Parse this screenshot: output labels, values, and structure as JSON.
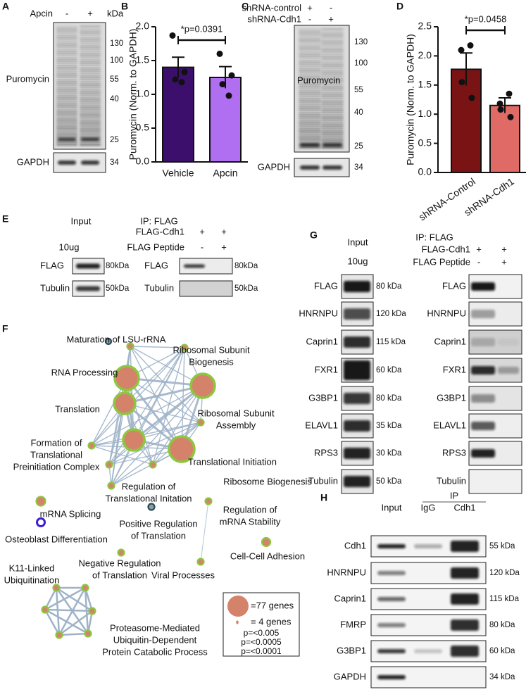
{
  "panels": [
    "A",
    "B",
    "C",
    "D",
    "E",
    "F",
    "G",
    "H"
  ],
  "panel_a": {
    "header": {
      "label": "Apcin",
      "lanes": [
        "-",
        "+"
      ],
      "unit": "kDa"
    },
    "markers": [
      "130",
      "100",
      "55",
      "40",
      "25"
    ],
    "blot_label": "Puromycin",
    "loading": {
      "label": "GAPDH",
      "marker": "34"
    }
  },
  "panel_c": {
    "conditions": [
      {
        "label": "shRNA-control",
        "lanes": [
          "+",
          "-"
        ]
      },
      {
        "label": "shRNA-Cdh1",
        "lanes": [
          "-",
          "+"
        ]
      }
    ],
    "markers": [
      "130",
      "100",
      "55",
      "40",
      "25"
    ],
    "blot_label": "Puromycin",
    "loading": {
      "label": "GAPDH",
      "marker": "34"
    }
  },
  "chart_data": [
    {
      "type": "bar",
      "ylabel": "Puromycin (Norm. to GAPDH)",
      "categories": [
        "Vehicle",
        "Apcin"
      ],
      "values": [
        1.4,
        1.25
      ],
      "errors": [
        0.15,
        0.16
      ],
      "colors": [
        "#3b0f6b",
        "#b06ef0"
      ],
      "points": [
        [
          1.87,
          1.33,
          1.22,
          1.18
        ],
        [
          1.6,
          1.28,
          1.15,
          0.98
        ]
      ],
      "ylim": [
        0,
        2.0
      ],
      "yticks": [
        {
          "value": 0,
          "label": "0.0"
        },
        0.5,
        {
          "value": 1,
          "label": "1.0"
        },
        1.5,
        {
          "value": 2,
          "label": "2.0"
        }
      ],
      "annotation": "*p=0.0391"
    },
    {
      "type": "bar",
      "ylabel": "Puromycin (Norm. to GAPDH)",
      "categories": [
        "shRNA-Control",
        "shRNA-Cdh1"
      ],
      "values": [
        1.77,
        1.15
      ],
      "errors": [
        0.28,
        0.13
      ],
      "colors": [
        "#7a1414",
        "#e06a66"
      ],
      "points": [
        [
          2.18,
          2.1,
          1.55,
          1.28
        ],
        [
          1.35,
          1.18,
          1.08,
          0.95
        ]
      ],
      "ylim": [
        0,
        2.5
      ],
      "yticks": [
        {
          "value": 0,
          "label": "0.0"
        },
        0.5,
        {
          "value": 1,
          "label": "1.0"
        },
        1.5,
        {
          "value": 2,
          "label": "2.0"
        },
        2.5
      ],
      "annotation": "*p=0.0458"
    }
  ],
  "panel_e": {
    "input": "Input",
    "amount": "10ug",
    "ip": "IP: FLAG",
    "conditions": [
      {
        "label": "FLAG-Cdh1",
        "lanes": [
          "+",
          "+"
        ]
      },
      {
        "label": "FLAG Peptide",
        "lanes": [
          "-",
          "+"
        ]
      }
    ],
    "rows": [
      {
        "label": "FLAG",
        "size": "80kDa"
      },
      {
        "label": "Tubulin",
        "size": "50kDa"
      }
    ]
  },
  "panel_f": {
    "terms": [
      [
        "Maturation of LSU-rRNA"
      ],
      [
        "Ribosomal Subunit",
        "Biogenesis"
      ],
      [
        "RNA Processing"
      ],
      [
        "Translation"
      ],
      [
        "Ribosomal Subunit",
        "Assembly"
      ],
      [
        "Formation of",
        "Translational",
        "Preinitiation Complex"
      ],
      [
        "Translational Initiation"
      ],
      [
        "Ribosome Biogenesis"
      ],
      [
        "Regulation of",
        "Translational Initation"
      ],
      [
        "mRNA Splicing"
      ],
      [
        "Regulation of",
        "mRNA Stability"
      ],
      [
        "Positive Regulation",
        "of Translation"
      ],
      [
        "Osteoblast Differentiation"
      ],
      [
        "Cell-Cell Adhesion"
      ],
      [
        "Negative Regulation",
        "of Translation"
      ],
      [
        "Viral Processes"
      ],
      [
        "K11-Linked",
        "Ubiquitination"
      ],
      [
        "Proteasome-Mediated",
        "Ubiquitin-Dependent",
        "Protein Catabolic Process"
      ]
    ],
    "legend": {
      "large": "=77 genes",
      "small": "= 4 genes",
      "pvalues": [
        "p=<0.005",
        "p=<0.0005",
        "p=<0.0001"
      ],
      "pvalue_colors": [
        "#5a2ca0",
        "#2c4a52",
        "#7ab034"
      ]
    }
  },
  "panel_g": {
    "input": "Input",
    "amount": "10ug",
    "ip": "IP: FLAG",
    "conditions": [
      {
        "label": "FLAG-Cdh1",
        "lanes": [
          "+",
          "+"
        ]
      },
      {
        "label": "FLAG Peptide",
        "lanes": [
          "-",
          "+"
        ]
      }
    ],
    "rows": [
      {
        "label": "FLAG",
        "size": "80 kDa"
      },
      {
        "label": "HNRNPU",
        "size": "120 kDa"
      },
      {
        "label": "Caprin1",
        "size": "115 kDa"
      },
      {
        "label": "FXR1",
        "size": "60 kDa"
      },
      {
        "label": "G3BP1",
        "size": "80 kDa"
      },
      {
        "label": "ELAVL1",
        "size": "35 kDa"
      },
      {
        "label": "RPS3",
        "size": "30 kDa"
      },
      {
        "label": "Tubulin",
        "size": "50 kDa"
      }
    ]
  },
  "panel_h": {
    "ip": "IP",
    "lanes": [
      "Input",
      "IgG",
      "Cdh1"
    ],
    "rows": [
      {
        "label": "Cdh1",
        "size": "55 kDa"
      },
      {
        "label": "HNRNPU",
        "size": "120 kDa"
      },
      {
        "label": "Caprin1",
        "size": "115 kDa"
      },
      {
        "label": "FMRP",
        "size": "80 kDa"
      },
      {
        "label": "G3BP1",
        "size": "60 kDa"
      },
      {
        "label": "GAPDH",
        "size": "34 kDa"
      }
    ]
  }
}
